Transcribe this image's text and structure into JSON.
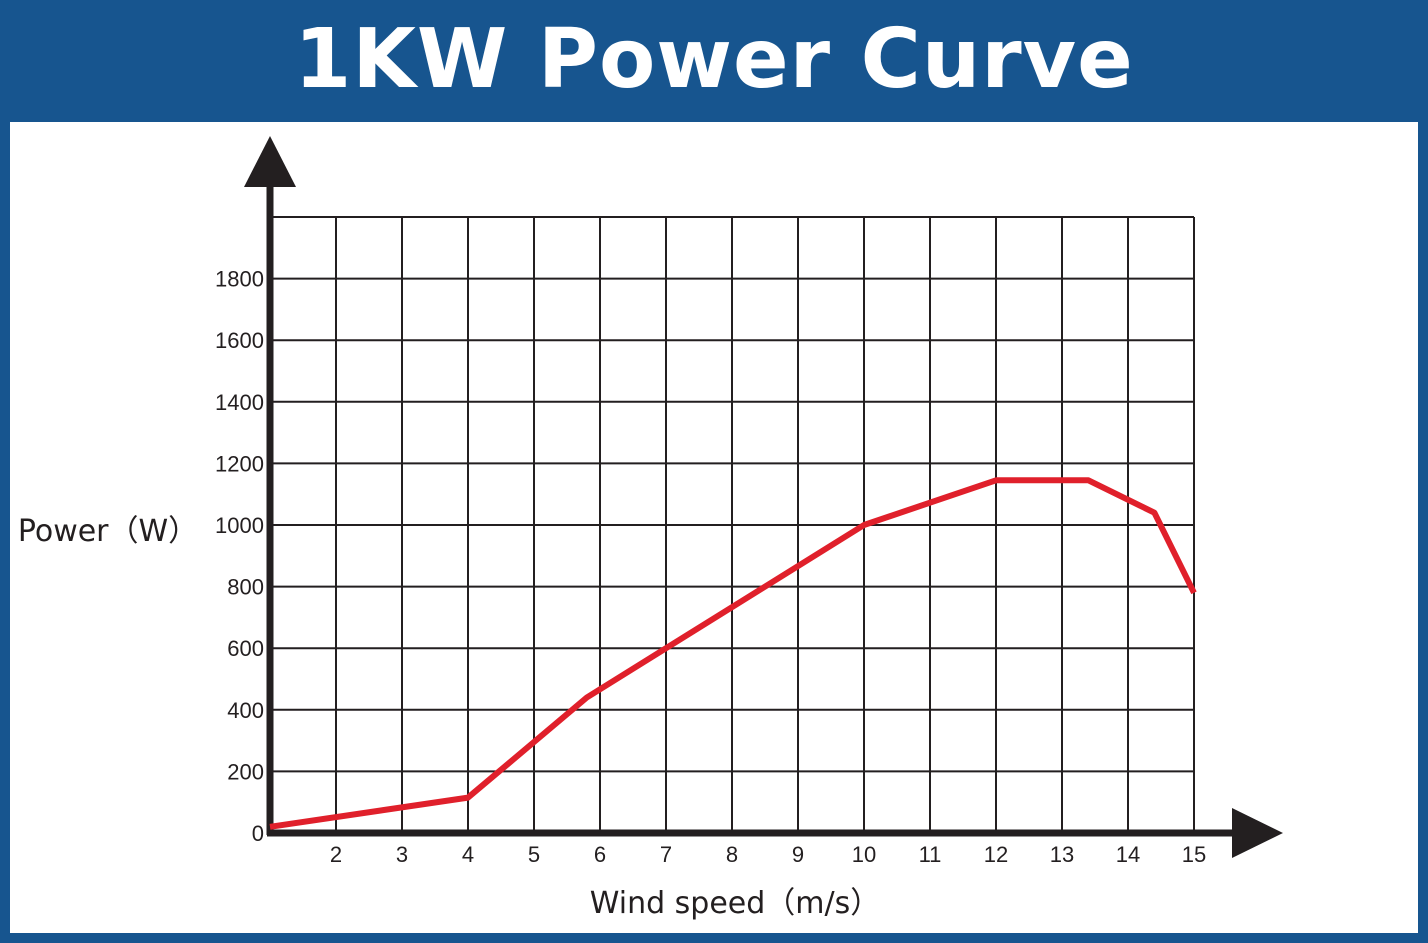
{
  "title": "1KW Power Curve",
  "colors": {
    "banner": "#17558f",
    "grid": "#231f20",
    "axis": "#231f20",
    "curve": "#e0202b"
  },
  "chart_data": {
    "type": "line",
    "title": "1KW Power Curve",
    "xlabel": "Wind speed（m/s）",
    "ylabel": "Power（W）",
    "xlim": [
      1,
      15
    ],
    "ylim": [
      0,
      2000
    ],
    "xticks": [
      "2",
      "3",
      "4",
      "5",
      "6",
      "7",
      "8",
      "9",
      "10",
      "11",
      "12",
      "13",
      "14",
      "15"
    ],
    "yticks": [
      "0",
      "200",
      "400",
      "600",
      "800",
      "1000",
      "1200",
      "1400",
      "1600",
      "1800"
    ],
    "grid": true,
    "series": [
      {
        "x": [
          1,
          4,
          5.8,
          10,
          12,
          13.4,
          14.4,
          15
        ],
        "y": [
          20,
          115,
          440,
          1000,
          1145,
          1145,
          1040,
          780
        ]
      }
    ]
  }
}
